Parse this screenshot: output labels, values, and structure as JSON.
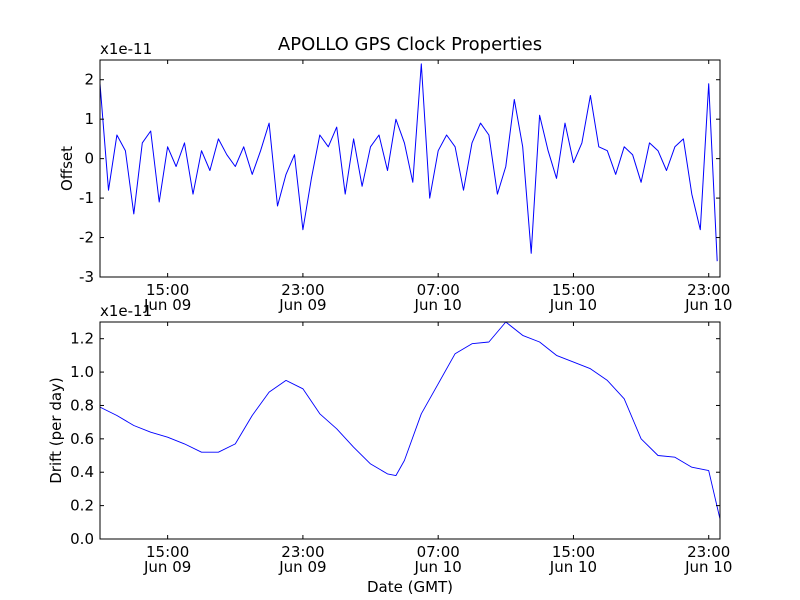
{
  "chart_data": [
    {
      "type": "line",
      "title": "APOLLO GPS Clock Properties",
      "xlabel": "",
      "ylabel": "Offset",
      "offset_text": "x1e-11",
      "x_range": [
        "2010-06-09 11:00",
        "2010-06-10 23:40"
      ],
      "ylim": [
        -3,
        2.5
      ],
      "yticks": [
        {
          "value": 2,
          "label": "2"
        },
        {
          "value": 1,
          "label": "1"
        },
        {
          "value": 0,
          "label": "0"
        },
        {
          "value": -1,
          "label": "-1"
        },
        {
          "value": -2,
          "label": "-2"
        },
        {
          "value": -3,
          "label": "-3"
        }
      ],
      "xticks": [
        {
          "value": "2010-06-09 15:00",
          "time": "15:00",
          "date": "Jun 09"
        },
        {
          "value": "2010-06-09 23:00",
          "time": "23:00",
          "date": "Jun 09"
        },
        {
          "value": "2010-06-10 07:00",
          "time": "07:00",
          "date": "Jun 10"
        },
        {
          "value": "2010-06-10 15:00",
          "time": "15:00",
          "date": "Jun 10"
        },
        {
          "value": "2010-06-10 23:00",
          "time": "23:00",
          "date": "Jun 10"
        }
      ],
      "grid": false,
      "line_color": "#0000ff",
      "series": [
        {
          "x": [
            "2010-06-09 11:00",
            "2010-06-09 11:30",
            "2010-06-09 12:00",
            "2010-06-09 12:30",
            "2010-06-09 13:00",
            "2010-06-09 13:30",
            "2010-06-09 14:00",
            "2010-06-09 14:30",
            "2010-06-09 15:00",
            "2010-06-09 15:30",
            "2010-06-09 16:00",
            "2010-06-09 16:30",
            "2010-06-09 17:00",
            "2010-06-09 17:30",
            "2010-06-09 18:00",
            "2010-06-09 18:30",
            "2010-06-09 19:00",
            "2010-06-09 19:30",
            "2010-06-09 20:00",
            "2010-06-09 20:30",
            "2010-06-09 21:00",
            "2010-06-09 21:30",
            "2010-06-09 22:00",
            "2010-06-09 22:30",
            "2010-06-09 23:00",
            "2010-06-09 23:30",
            "2010-06-10 00:00",
            "2010-06-10 00:30",
            "2010-06-10 01:00",
            "2010-06-10 01:30",
            "2010-06-10 02:00",
            "2010-06-10 02:30",
            "2010-06-10 03:00",
            "2010-06-10 03:30",
            "2010-06-10 04:00",
            "2010-06-10 04:30",
            "2010-06-10 05:00",
            "2010-06-10 05:30",
            "2010-06-10 06:00",
            "2010-06-10 06:30",
            "2010-06-10 07:00",
            "2010-06-10 07:30",
            "2010-06-10 08:00",
            "2010-06-10 08:30",
            "2010-06-10 09:00",
            "2010-06-10 09:30",
            "2010-06-10 10:00",
            "2010-06-10 10:30",
            "2010-06-10 11:00",
            "2010-06-10 11:30",
            "2010-06-10 12:00",
            "2010-06-10 12:30",
            "2010-06-10 13:00",
            "2010-06-10 13:30",
            "2010-06-10 14:00",
            "2010-06-10 14:30",
            "2010-06-10 15:00",
            "2010-06-10 15:30",
            "2010-06-10 16:00",
            "2010-06-10 16:30",
            "2010-06-10 17:00",
            "2010-06-10 17:30",
            "2010-06-10 18:00",
            "2010-06-10 18:30",
            "2010-06-10 19:00",
            "2010-06-10 19:30",
            "2010-06-10 20:00",
            "2010-06-10 20:30",
            "2010-06-10 21:00",
            "2010-06-10 21:30",
            "2010-06-10 22:00",
            "2010-06-10 22:30",
            "2010-06-10 23:00",
            "2010-06-10 23:30"
          ],
          "y": [
            1.9,
            -0.8,
            0.6,
            0.2,
            -1.4,
            0.4,
            0.7,
            -1.1,
            0.3,
            -0.2,
            0.4,
            -0.9,
            0.2,
            -0.3,
            0.5,
            0.1,
            -0.2,
            0.3,
            -0.4,
            0.2,
            0.9,
            -1.2,
            -0.4,
            0.1,
            -1.8,
            -0.5,
            0.6,
            0.3,
            0.8,
            -0.9,
            0.5,
            -0.7,
            0.3,
            0.6,
            -0.3,
            1.0,
            0.4,
            -0.6,
            2.4,
            -1.0,
            0.2,
            0.6,
            0.3,
            -0.8,
            0.4,
            0.9,
            0.6,
            -0.9,
            -0.2,
            1.5,
            0.3,
            -2.4,
            1.1,
            0.2,
            -0.5,
            0.9,
            -0.1,
            0.4,
            1.6,
            0.3,
            0.2,
            -0.4,
            0.3,
            0.1,
            -0.6,
            0.4,
            0.2,
            -0.3,
            0.3,
            0.5,
            -0.9,
            -1.8,
            1.9,
            -2.6
          ]
        }
      ]
    },
    {
      "type": "line",
      "title": "",
      "xlabel": "Date (GMT)",
      "ylabel": "Drift (per day)",
      "offset_text": "x1e-11",
      "x_range": [
        "2010-06-09 11:00",
        "2010-06-10 23:40"
      ],
      "ylim": [
        0.0,
        1.3
      ],
      "yticks": [
        {
          "value": 1.2,
          "label": "1.2"
        },
        {
          "value": 1.0,
          "label": "1.0"
        },
        {
          "value": 0.8,
          "label": "0.8"
        },
        {
          "value": 0.6,
          "label": "0.6"
        },
        {
          "value": 0.4,
          "label": "0.4"
        },
        {
          "value": 0.2,
          "label": "0.2"
        },
        {
          "value": 0.0,
          "label": "0.0"
        }
      ],
      "xticks": [
        {
          "value": "2010-06-09 15:00",
          "time": "15:00",
          "date": "Jun 09"
        },
        {
          "value": "2010-06-09 23:00",
          "time": "23:00",
          "date": "Jun 09"
        },
        {
          "value": "2010-06-10 07:00",
          "time": "07:00",
          "date": "Jun 10"
        },
        {
          "value": "2010-06-10 15:00",
          "time": "15:00",
          "date": "Jun 10"
        },
        {
          "value": "2010-06-10 23:00",
          "time": "23:00",
          "date": "Jun 10"
        }
      ],
      "grid": false,
      "line_color": "#0000ff",
      "series": [
        {
          "x": [
            "2010-06-09 11:00",
            "2010-06-09 12:00",
            "2010-06-09 13:00",
            "2010-06-09 14:00",
            "2010-06-09 15:00",
            "2010-06-09 16:00",
            "2010-06-09 17:00",
            "2010-06-09 18:00",
            "2010-06-09 19:00",
            "2010-06-09 20:00",
            "2010-06-09 21:00",
            "2010-06-09 22:00",
            "2010-06-09 23:00",
            "2010-06-10 00:00",
            "2010-06-10 01:00",
            "2010-06-10 02:00",
            "2010-06-10 03:00",
            "2010-06-10 04:00",
            "2010-06-10 04:30",
            "2010-06-10 05:00",
            "2010-06-10 06:00",
            "2010-06-10 07:00",
            "2010-06-10 08:00",
            "2010-06-10 09:00",
            "2010-06-10 10:00",
            "2010-06-10 11:00",
            "2010-06-10 12:00",
            "2010-06-10 13:00",
            "2010-06-10 14:00",
            "2010-06-10 15:00",
            "2010-06-10 16:00",
            "2010-06-10 17:00",
            "2010-06-10 18:00",
            "2010-06-10 19:00",
            "2010-06-10 20:00",
            "2010-06-10 21:00",
            "2010-06-10 22:00",
            "2010-06-10 23:00",
            "2010-06-10 23:40"
          ],
          "y": [
            0.79,
            0.74,
            0.68,
            0.64,
            0.61,
            0.57,
            0.52,
            0.52,
            0.57,
            0.74,
            0.88,
            0.95,
            0.9,
            0.75,
            0.66,
            0.55,
            0.45,
            0.39,
            0.38,
            0.47,
            0.75,
            0.93,
            1.11,
            1.17,
            1.18,
            1.3,
            1.22,
            1.18,
            1.1,
            1.06,
            1.02,
            0.95,
            0.84,
            0.6,
            0.5,
            0.49,
            0.43,
            0.41,
            0.12
          ]
        }
      ]
    }
  ]
}
